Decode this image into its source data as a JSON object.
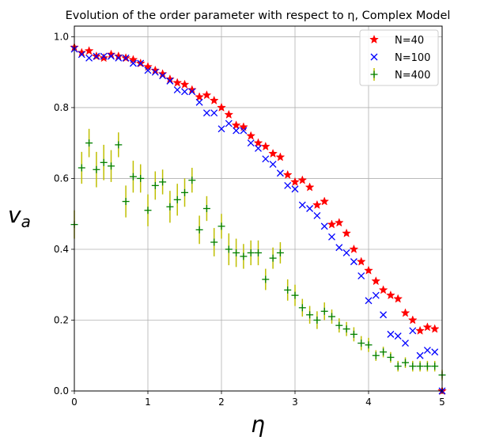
{
  "chart_data": {
    "type": "scatter",
    "title": "Evolution of the order parameter with respect to η, Complex Model",
    "xlabel": "η",
    "ylabel": "v_a",
    "xlim": [
      0,
      5
    ],
    "ylim": [
      0,
      1.03
    ],
    "xticks": [
      "0",
      "1",
      "2",
      "3",
      "4",
      "5"
    ],
    "yticks": [
      "0.0",
      "0.2",
      "0.4",
      "0.6",
      "0.8",
      "1.0"
    ],
    "grid": true,
    "legend_position": "top-right",
    "series": [
      {
        "name": "N=40",
        "marker": "star",
        "color": "#ff0000",
        "x": [
          0.0,
          0.1,
          0.2,
          0.3,
          0.4,
          0.5,
          0.6,
          0.7,
          0.8,
          0.9,
          1.0,
          1.1,
          1.2,
          1.3,
          1.4,
          1.5,
          1.6,
          1.7,
          1.8,
          1.9,
          2.0,
          2.1,
          2.2,
          2.3,
          2.4,
          2.5,
          2.6,
          2.7,
          2.8,
          2.9,
          3.0,
          3.1,
          3.2,
          3.3,
          3.4,
          3.5,
          3.6,
          3.7,
          3.8,
          3.9,
          4.0,
          4.1,
          4.2,
          4.3,
          4.4,
          4.5,
          4.6,
          4.7,
          4.8,
          4.9,
          5.0
        ],
        "y": [
          0.97,
          0.955,
          0.96,
          0.945,
          0.94,
          0.95,
          0.945,
          0.94,
          0.935,
          0.925,
          0.915,
          0.905,
          0.895,
          0.88,
          0.87,
          0.865,
          0.85,
          0.83,
          0.835,
          0.82,
          0.8,
          0.78,
          0.75,
          0.745,
          0.72,
          0.7,
          0.69,
          0.67,
          0.66,
          0.61,
          0.59,
          0.595,
          0.575,
          0.525,
          0.535,
          0.47,
          0.475,
          0.445,
          0.4,
          0.365,
          0.34,
          0.31,
          0.285,
          0.27,
          0.26,
          0.22,
          0.2,
          0.17,
          0.18,
          0.175,
          0.0
        ]
      },
      {
        "name": "N=100",
        "marker": "x",
        "color": "#0000ff",
        "x": [
          0.0,
          0.1,
          0.2,
          0.3,
          0.4,
          0.5,
          0.6,
          0.7,
          0.8,
          0.9,
          1.0,
          1.1,
          1.2,
          1.3,
          1.4,
          1.5,
          1.6,
          1.7,
          1.8,
          1.9,
          2.0,
          2.1,
          2.2,
          2.3,
          2.4,
          2.5,
          2.6,
          2.7,
          2.8,
          2.9,
          3.0,
          3.1,
          3.2,
          3.3,
          3.4,
          3.5,
          3.6,
          3.7,
          3.8,
          3.9,
          4.0,
          4.1,
          4.2,
          4.3,
          4.4,
          4.5,
          4.6,
          4.7,
          4.8,
          4.9,
          5.0
        ],
        "y": [
          0.965,
          0.95,
          0.94,
          0.945,
          0.945,
          0.945,
          0.94,
          0.94,
          0.925,
          0.925,
          0.905,
          0.9,
          0.89,
          0.875,
          0.85,
          0.845,
          0.845,
          0.815,
          0.785,
          0.785,
          0.74,
          0.755,
          0.735,
          0.735,
          0.7,
          0.685,
          0.655,
          0.64,
          0.615,
          0.58,
          0.57,
          0.525,
          0.515,
          0.495,
          0.465,
          0.435,
          0.405,
          0.39,
          0.365,
          0.325,
          0.255,
          0.27,
          0.215,
          0.16,
          0.155,
          0.135,
          0.17,
          0.1,
          0.115,
          0.11,
          0.0
        ]
      },
      {
        "name": "N=400",
        "marker": "plus",
        "color": "#008000",
        "error_color": "#bfbf00",
        "x": [
          0.0,
          0.1,
          0.2,
          0.3,
          0.4,
          0.5,
          0.6,
          0.7,
          0.8,
          0.9,
          1.0,
          1.1,
          1.2,
          1.3,
          1.4,
          1.5,
          1.6,
          1.7,
          1.8,
          1.9,
          2.0,
          2.1,
          2.2,
          2.3,
          2.4,
          2.5,
          2.6,
          2.7,
          2.8,
          2.9,
          3.0,
          3.1,
          3.2,
          3.3,
          3.4,
          3.5,
          3.6,
          3.7,
          3.8,
          3.9,
          4.0,
          4.1,
          4.2,
          4.3,
          4.4,
          4.5,
          4.6,
          4.7,
          4.8,
          4.9,
          5.0
        ],
        "y": [
          0.47,
          0.63,
          0.7,
          0.625,
          0.645,
          0.635,
          0.695,
          0.535,
          0.605,
          0.6,
          0.51,
          0.58,
          0.59,
          0.52,
          0.54,
          0.56,
          0.595,
          0.455,
          0.515,
          0.42,
          0.465,
          0.4,
          0.39,
          0.38,
          0.39,
          0.39,
          0.315,
          0.375,
          0.39,
          0.285,
          0.27,
          0.235,
          0.215,
          0.2,
          0.225,
          0.21,
          0.185,
          0.175,
          0.16,
          0.135,
          0.13,
          0.1,
          0.11,
          0.095,
          0.07,
          0.08,
          0.07,
          0.07,
          0.07,
          0.07,
          0.045
        ],
        "yerr": [
          0.04,
          0.045,
          0.04,
          0.05,
          0.05,
          0.045,
          0.035,
          0.045,
          0.045,
          0.04,
          0.045,
          0.04,
          0.035,
          0.045,
          0.045,
          0.04,
          0.035,
          0.04,
          0.035,
          0.04,
          0.035,
          0.045,
          0.04,
          0.035,
          0.035,
          0.035,
          0.03,
          0.03,
          0.03,
          0.03,
          0.03,
          0.025,
          0.025,
          0.025,
          0.025,
          0.02,
          0.02,
          0.02,
          0.02,
          0.02,
          0.02,
          0.015,
          0.015,
          0.015,
          0.015,
          0.015,
          0.015,
          0.015,
          0.015,
          0.015,
          0.015
        ]
      }
    ]
  }
}
